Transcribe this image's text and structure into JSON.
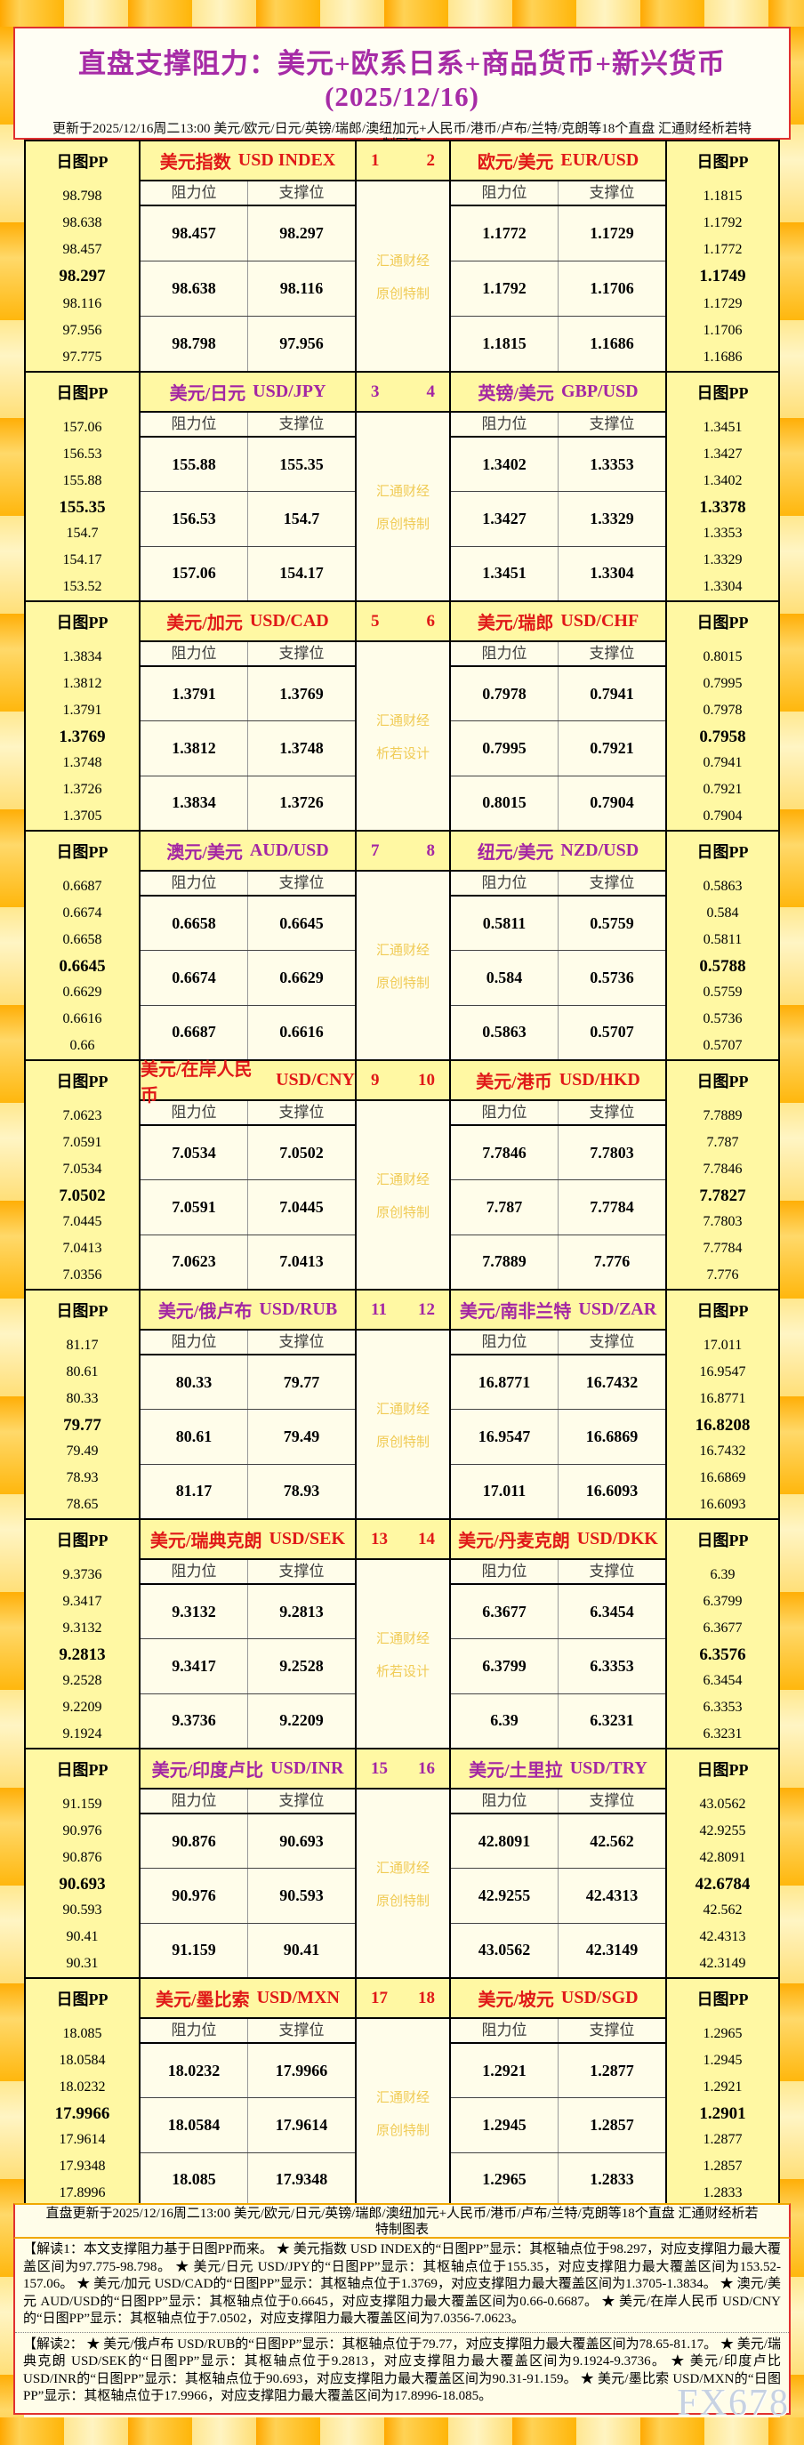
{
  "title": "直盘支撑阻力：美元+欧系日系+商品货币+新兴货币(2025/12/16)",
  "subtitle": "更新于2025/12/16周二13:00 美元/欧元/日元/英镑/瑞郎/澳纽加元+人民币/港币/卢布/兰特/克朗等18个直盘 汇通财经析若特制图表",
  "labels": {
    "pp_header": "日图PP",
    "resistance": "阻力位",
    "support": "支撑位"
  },
  "watermark": {
    "line1": "汇通财经",
    "brand": "FX678"
  },
  "blocks": [
    {
      "color": "red",
      "num_left": "1",
      "num_right": "2",
      "watermark2": "原创特制",
      "left": {
        "name_cn": "美元指数",
        "name_en": "USD INDEX",
        "pp": [
          "98.798",
          "98.638",
          "98.457",
          "98.297",
          "98.116",
          "97.956",
          "97.775"
        ],
        "rows": [
          [
            "98.457",
            "98.297"
          ],
          [
            "98.638",
            "98.116"
          ],
          [
            "98.798",
            "97.956"
          ]
        ]
      },
      "right": {
        "name_cn": "欧元/美元",
        "name_en": "EUR/USD",
        "pp": [
          "1.1815",
          "1.1792",
          "1.1772",
          "1.1749",
          "1.1729",
          "1.1706",
          "1.1686"
        ],
        "rows": [
          [
            "1.1772",
            "1.1729"
          ],
          [
            "1.1792",
            "1.1706"
          ],
          [
            "1.1815",
            "1.1686"
          ]
        ]
      }
    },
    {
      "color": "purple",
      "num_left": "3",
      "num_right": "4",
      "watermark2": "原创特制",
      "left": {
        "name_cn": "美元/日元",
        "name_en": "USD/JPY",
        "pp": [
          "157.06",
          "156.53",
          "155.88",
          "155.35",
          "154.7",
          "154.17",
          "153.52"
        ],
        "rows": [
          [
            "155.88",
            "155.35"
          ],
          [
            "156.53",
            "154.7"
          ],
          [
            "157.06",
            "154.17"
          ]
        ]
      },
      "right": {
        "name_cn": "英镑/美元",
        "name_en": "GBP/USD",
        "pp": [
          "1.3451",
          "1.3427",
          "1.3402",
          "1.3378",
          "1.3353",
          "1.3329",
          "1.3304"
        ],
        "rows": [
          [
            "1.3402",
            "1.3353"
          ],
          [
            "1.3427",
            "1.3329"
          ],
          [
            "1.3451",
            "1.3304"
          ]
        ]
      }
    },
    {
      "color": "red",
      "num_left": "5",
      "num_right": "6",
      "watermark2": "析若设计",
      "left": {
        "name_cn": "美元/加元",
        "name_en": "USD/CAD",
        "pp": [
          "1.3834",
          "1.3812",
          "1.3791",
          "1.3769",
          "1.3748",
          "1.3726",
          "1.3705"
        ],
        "rows": [
          [
            "1.3791",
            "1.3769"
          ],
          [
            "1.3812",
            "1.3748"
          ],
          [
            "1.3834",
            "1.3726"
          ]
        ]
      },
      "right": {
        "name_cn": "美元/瑞郎",
        "name_en": "USD/CHF",
        "pp": [
          "0.8015",
          "0.7995",
          "0.7978",
          "0.7958",
          "0.7941",
          "0.7921",
          "0.7904"
        ],
        "rows": [
          [
            "0.7978",
            "0.7941"
          ],
          [
            "0.7995",
            "0.7921"
          ],
          [
            "0.8015",
            "0.7904"
          ]
        ]
      }
    },
    {
      "color": "purple",
      "num_left": "7",
      "num_right": "8",
      "watermark2": "原创特制",
      "left": {
        "name_cn": "澳元/美元",
        "name_en": "AUD/USD",
        "pp": [
          "0.6687",
          "0.6674",
          "0.6658",
          "0.6645",
          "0.6629",
          "0.6616",
          "0.66"
        ],
        "rows": [
          [
            "0.6658",
            "0.6645"
          ],
          [
            "0.6674",
            "0.6629"
          ],
          [
            "0.6687",
            "0.6616"
          ]
        ]
      },
      "right": {
        "name_cn": "纽元/美元",
        "name_en": "NZD/USD",
        "pp": [
          "0.5863",
          "0.584",
          "0.5811",
          "0.5788",
          "0.5759",
          "0.5736",
          "0.5707"
        ],
        "rows": [
          [
            "0.5811",
            "0.5759"
          ],
          [
            "0.584",
            "0.5736"
          ],
          [
            "0.5863",
            "0.5707"
          ]
        ]
      }
    },
    {
      "color": "red",
      "num_left": "9",
      "num_right": "10",
      "watermark2": "原创特制",
      "left": {
        "name_cn": "美元/在岸人民币",
        "name_en": "USD/CNY",
        "pp": [
          "7.0623",
          "7.0591",
          "7.0534",
          "7.0502",
          "7.0445",
          "7.0413",
          "7.0356"
        ],
        "rows": [
          [
            "7.0534",
            "7.0502"
          ],
          [
            "7.0591",
            "7.0445"
          ],
          [
            "7.0623",
            "7.0413"
          ]
        ]
      },
      "right": {
        "name_cn": "美元/港币",
        "name_en": "USD/HKD",
        "pp": [
          "7.7889",
          "7.787",
          "7.7846",
          "7.7827",
          "7.7803",
          "7.7784",
          "7.776"
        ],
        "rows": [
          [
            "7.7846",
            "7.7803"
          ],
          [
            "7.787",
            "7.7784"
          ],
          [
            "7.7889",
            "7.776"
          ]
        ]
      }
    },
    {
      "color": "purple",
      "num_left": "11",
      "num_right": "12",
      "watermark2": "原创特制",
      "left": {
        "name_cn": "美元/俄卢布",
        "name_en": "USD/RUB",
        "pp": [
          "81.17",
          "80.61",
          "80.33",
          "79.77",
          "79.49",
          "78.93",
          "78.65"
        ],
        "rows": [
          [
            "80.33",
            "79.77"
          ],
          [
            "80.61",
            "79.49"
          ],
          [
            "81.17",
            "78.93"
          ]
        ]
      },
      "right": {
        "name_cn": "美元/南非兰特",
        "name_en": "USD/ZAR",
        "pp": [
          "17.011",
          "16.9547",
          "16.8771",
          "16.8208",
          "16.7432",
          "16.6869",
          "16.6093"
        ],
        "rows": [
          [
            "16.8771",
            "16.7432"
          ],
          [
            "16.9547",
            "16.6869"
          ],
          [
            "17.011",
            "16.6093"
          ]
        ]
      }
    },
    {
      "color": "red",
      "num_left": "13",
      "num_right": "14",
      "watermark2": "析若设计",
      "left": {
        "name_cn": "美元/瑞典克朗",
        "name_en": "USD/SEK",
        "pp": [
          "9.3736",
          "9.3417",
          "9.3132",
          "9.2813",
          "9.2528",
          "9.2209",
          "9.1924"
        ],
        "rows": [
          [
            "9.3132",
            "9.2813"
          ],
          [
            "9.3417",
            "9.2528"
          ],
          [
            "9.3736",
            "9.2209"
          ]
        ]
      },
      "right": {
        "name_cn": "美元/丹麦克朗",
        "name_en": "USD/DKK",
        "pp": [
          "6.39",
          "6.3799",
          "6.3677",
          "6.3576",
          "6.3454",
          "6.3353",
          "6.3231"
        ],
        "rows": [
          [
            "6.3677",
            "6.3454"
          ],
          [
            "6.3799",
            "6.3353"
          ],
          [
            "6.39",
            "6.3231"
          ]
        ]
      }
    },
    {
      "color": "purple",
      "num_left": "15",
      "num_right": "16",
      "watermark2": "原创特制",
      "left": {
        "name_cn": "美元/印度卢比",
        "name_en": "USD/INR",
        "pp": [
          "91.159",
          "90.976",
          "90.876",
          "90.693",
          "90.593",
          "90.41",
          "90.31"
        ],
        "rows": [
          [
            "90.876",
            "90.693"
          ],
          [
            "90.976",
            "90.593"
          ],
          [
            "91.159",
            "90.41"
          ]
        ]
      },
      "right": {
        "name_cn": "美元/土里拉",
        "name_en": "USD/TRY",
        "pp": [
          "43.0562",
          "42.9255",
          "42.8091",
          "42.6784",
          "42.562",
          "42.4313",
          "42.3149"
        ],
        "rows": [
          [
            "42.8091",
            "42.562"
          ],
          [
            "42.9255",
            "42.4313"
          ],
          [
            "43.0562",
            "42.3149"
          ]
        ]
      }
    },
    {
      "color": "red",
      "num_left": "17",
      "num_right": "18",
      "watermark2": "原创特制",
      "left": {
        "name_cn": "美元/墨比索",
        "name_en": "USD/MXN",
        "pp": [
          "18.085",
          "18.0584",
          "18.0232",
          "17.9966",
          "17.9614",
          "17.9348",
          "17.8996"
        ],
        "rows": [
          [
            "18.0232",
            "17.9966"
          ],
          [
            "18.0584",
            "17.9614"
          ],
          [
            "18.085",
            "17.9348"
          ]
        ]
      },
      "right": {
        "name_cn": "美元/坡元",
        "name_en": "USD/SGD",
        "pp": [
          "1.2965",
          "1.2945",
          "1.2921",
          "1.2901",
          "1.2877",
          "1.2857",
          "1.2833"
        ],
        "rows": [
          [
            "1.2921",
            "1.2877"
          ],
          [
            "1.2945",
            "1.2857"
          ],
          [
            "1.2965",
            "1.2833"
          ]
        ]
      }
    }
  ],
  "footer_line": "直盘更新于2025/12/16周二13:00 美元/欧元/日元/英镑/瑞郎/澳纽加元+人民币/港币/卢布/兰特/克朗等18个直盘 汇通财经析若特制图表",
  "notes": {
    "note1": "【解读1：本文支撑阻力基于日图PP而来。 ★ 美元指数 USD INDEX的“日图PP”显示：其枢轴点位于98.297，对应支撑阻力最大覆盖区间为97.775-98.798。 ★ 美元/日元 USD/JPY的“日图PP”显示：其枢轴点位于155.35，对应支撑阻力最大覆盖区间为153.52-157.06。 ★ 美元/加元 USD/CAD的“日图PP”显示：其枢轴点位于1.3769，对应支撑阻力最大覆盖区间为1.3705-1.3834。 ★ 澳元/美元 AUD/USD的“日图PP”显示：其枢轴点位于0.6645，对应支撑阻力最大覆盖区间为0.66-0.6687。 ★ 美元/在岸人民币 USD/CNY的“日图PP”显示：其枢轴点位于7.0502，对应支撑阻力最大覆盖区间为7.0356-7.0623。",
    "note2": "【解读2： ★ 美元/俄卢布 USD/RUB的“日图PP”显示：其枢轴点位于79.77，对应支撑阻力最大覆盖区间为78.65-81.17。 ★ 美元/瑞典克朗 USD/SEK的“日图PP”显示：其枢轴点位于9.2813，对应支撑阻力最大覆盖区间为9.1924-9.3736。 ★ 美元/印度卢比 USD/INR的“日图PP”显示：其枢轴点位于90.693，对应支撑阻力最大覆盖区间为90.31-91.159。 ★ 美元/墨比索 USD/MXN的“日图PP”显示：其枢轴点位于17.9966，对应支撑阻力最大覆盖区间为17.8996-18.085。"
  }
}
